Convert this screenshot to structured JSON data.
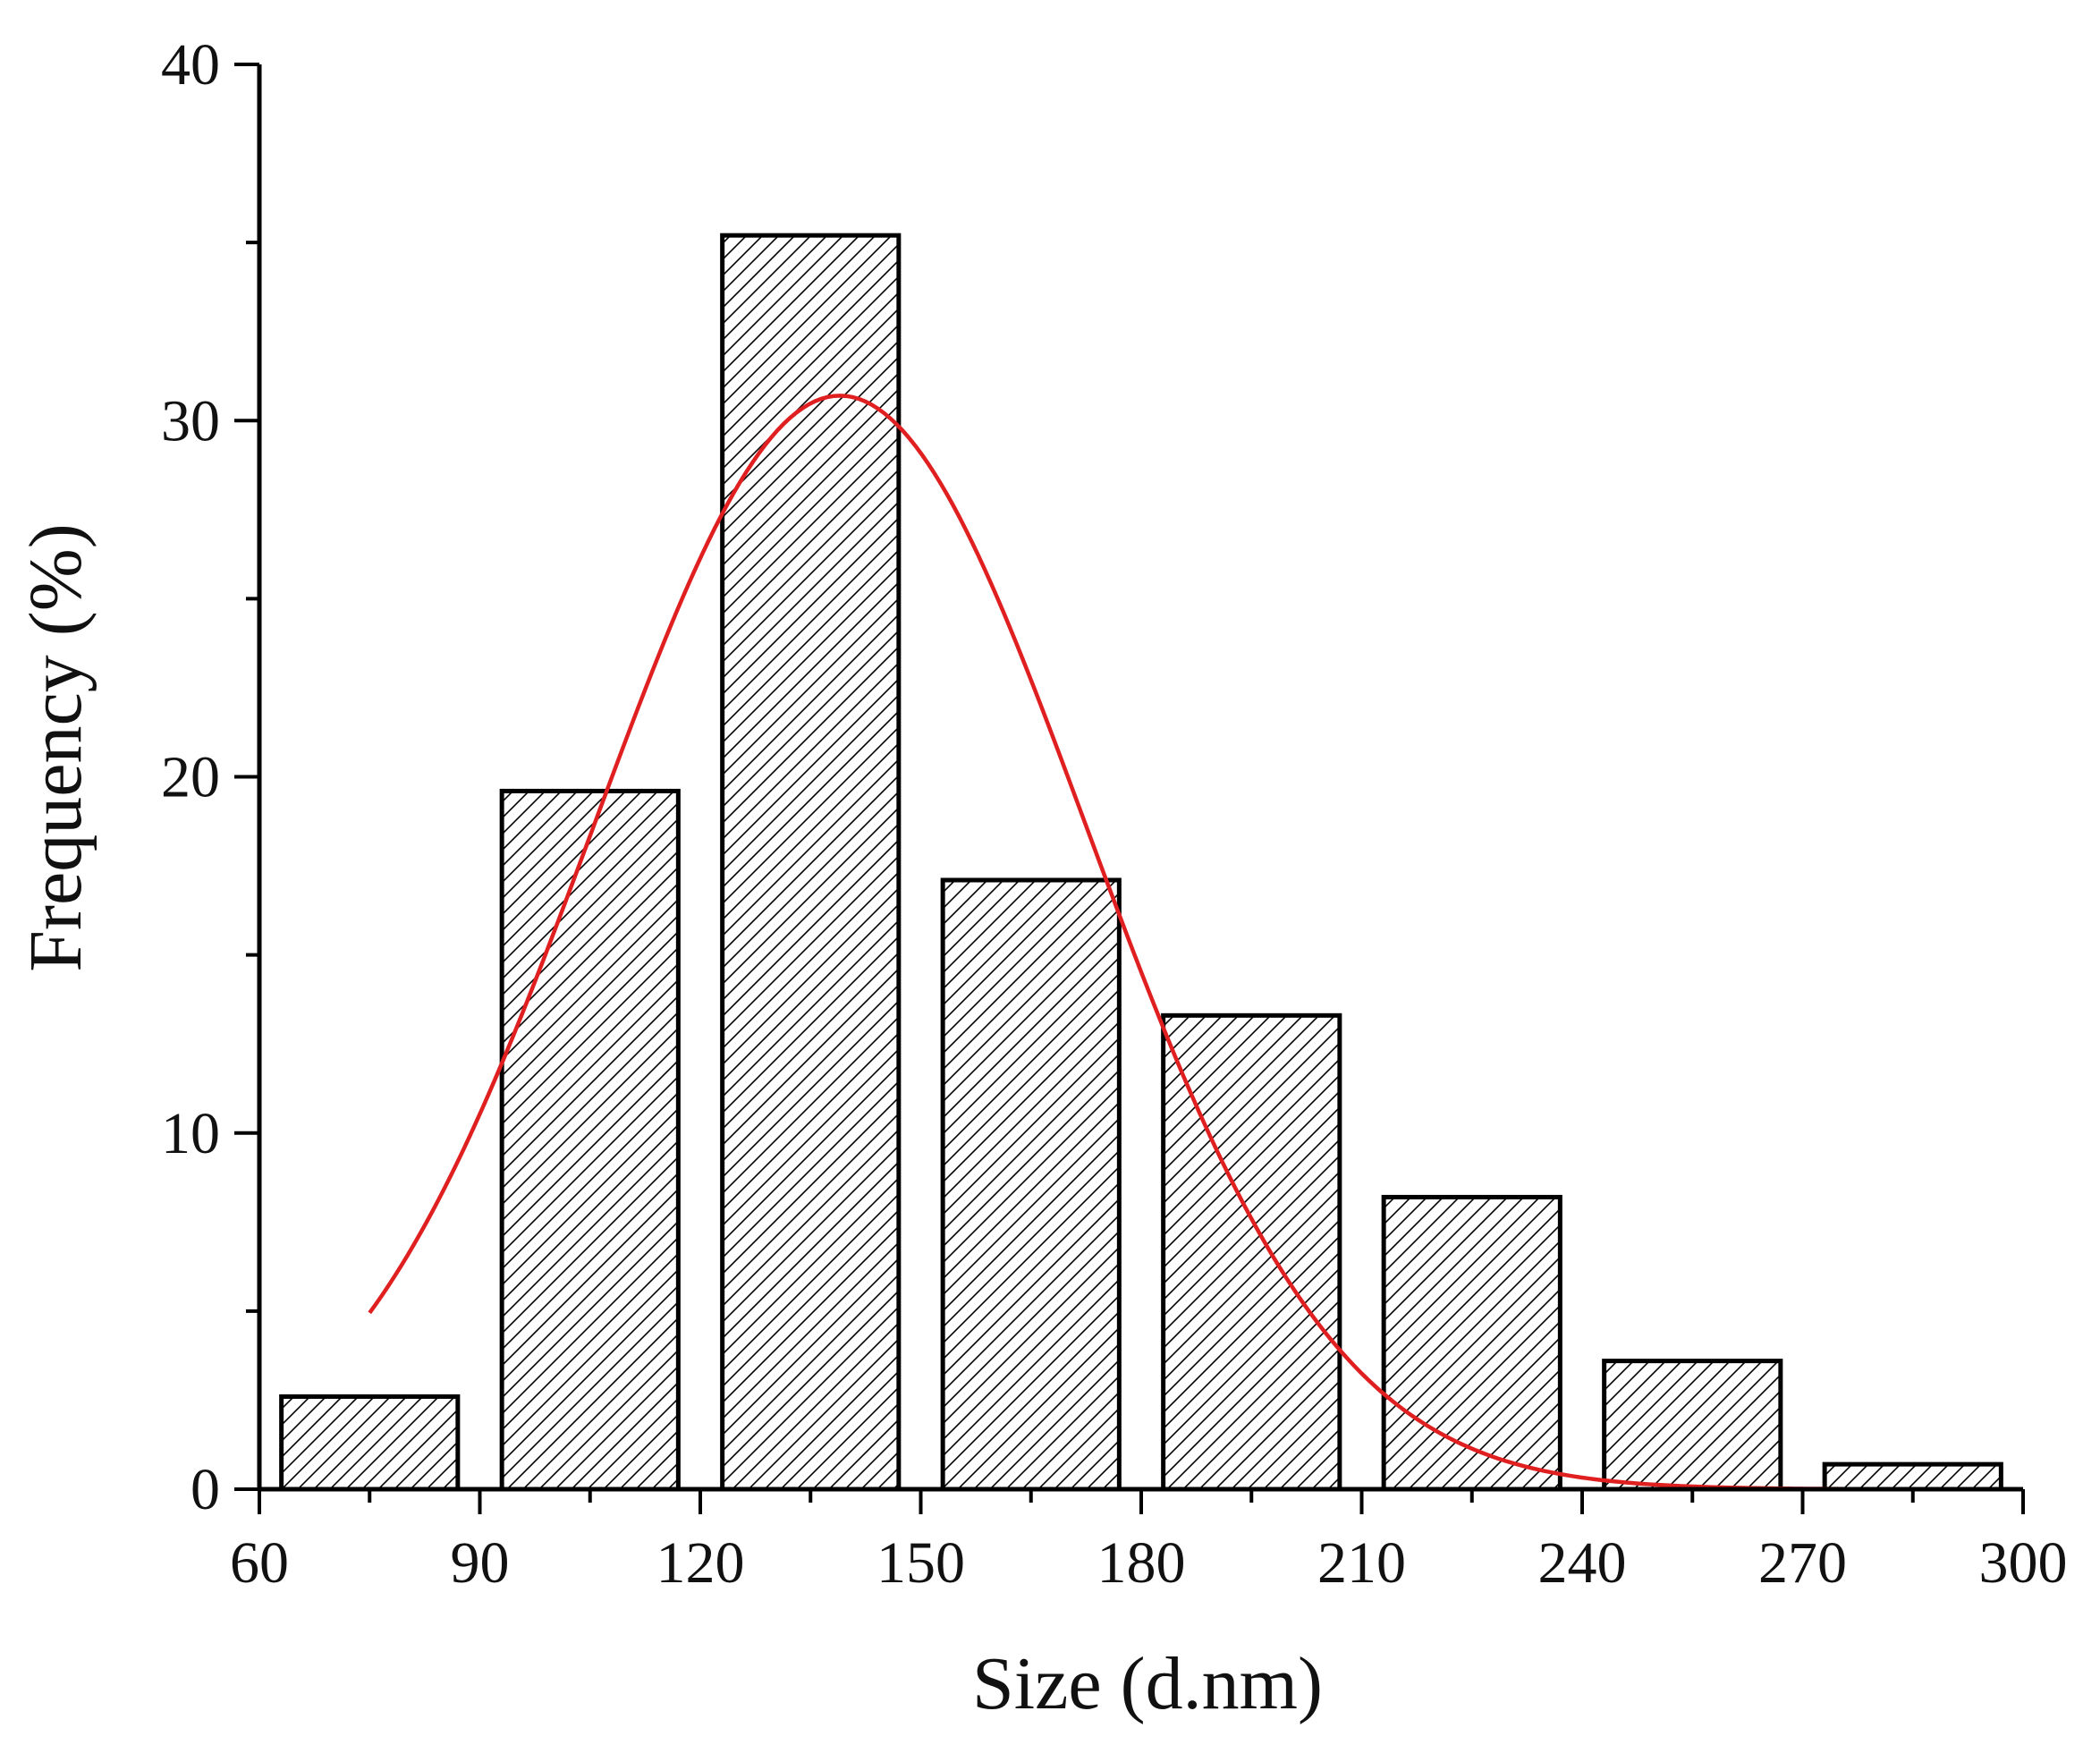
{
  "chart_data": {
    "type": "bar",
    "title": "",
    "xlabel": "Size (d.nm)",
    "ylabel": "Frequency (%)",
    "xlim": [
      60,
      300
    ],
    "ylim": [
      0,
      40
    ],
    "x_ticks": [
      "60",
      "90",
      "120",
      "150",
      "180",
      "210",
      "240",
      "270",
      "300"
    ],
    "y_ticks": [
      "0",
      "10",
      "20",
      "30",
      "40"
    ],
    "grid": false,
    "legend": "none",
    "bar_style": "white fill with black outline and diagonal hatching",
    "bars": [
      {
        "x_start": 63,
        "x_end": 87,
        "value": 2.6
      },
      {
        "x_start": 93,
        "x_end": 117,
        "value": 19.6
      },
      {
        "x_start": 123,
        "x_end": 147,
        "value": 35.2
      },
      {
        "x_start": 153,
        "x_end": 177,
        "value": 17.1
      },
      {
        "x_start": 183,
        "x_end": 207,
        "value": 13.3
      },
      {
        "x_start": 213,
        "x_end": 237,
        "value": 8.2
      },
      {
        "x_start": 243,
        "x_end": 267,
        "value": 3.6
      },
      {
        "x_start": 273,
        "x_end": 297,
        "value": 0.7
      }
    ],
    "fit_curve": {
      "type": "gaussian",
      "color": "#e02020",
      "x_range": [
        75,
        280
      ],
      "peak_x": 139,
      "peak_y": 30.7,
      "sigma": 33.5
    },
    "colors": {
      "bar_outline": "#000000",
      "bar_fill": "#ffffff",
      "hatch": "#000000",
      "axis": "#000000"
    }
  }
}
